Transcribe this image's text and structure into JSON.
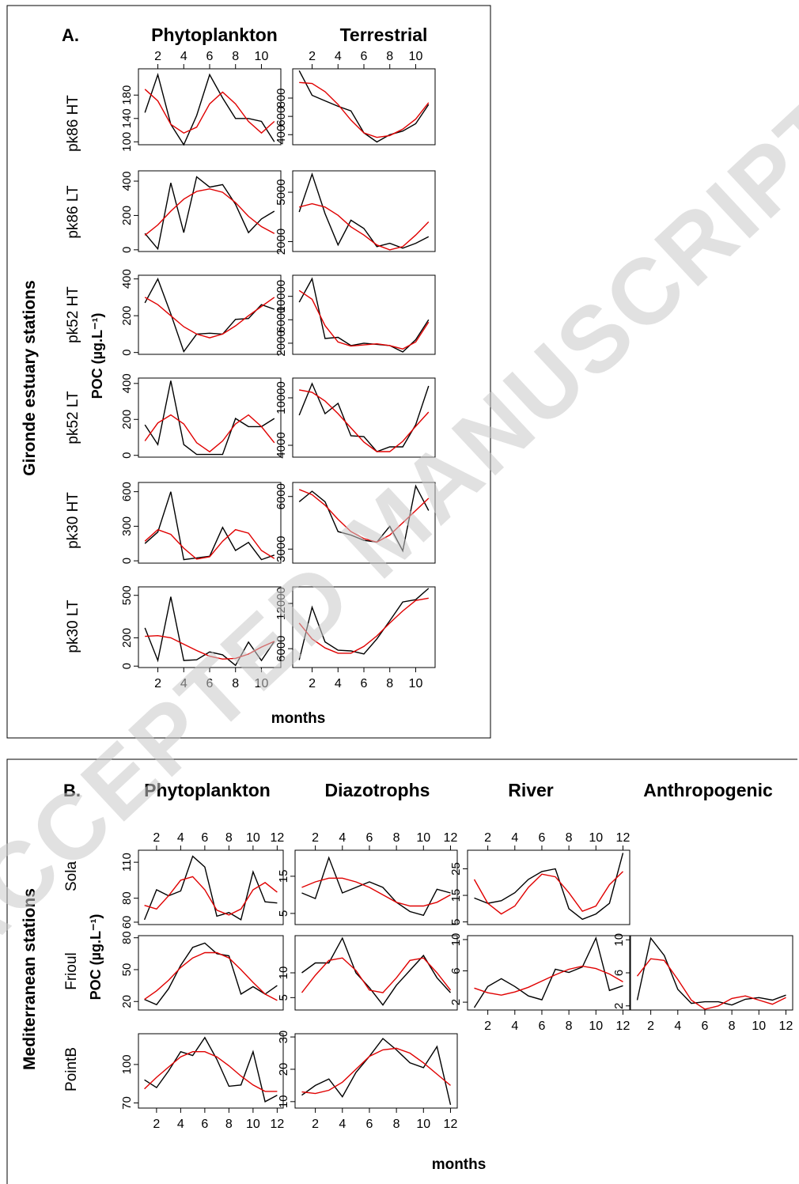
{
  "watermark": "ACCEPTED MANUSCRIPT",
  "colors": {
    "observed": "#000000",
    "fitted": "#e00000",
    "watermark": "#c8c8c8"
  },
  "x_ticks": [
    2,
    4,
    6,
    8,
    10,
    12
  ],
  "panelA": {
    "letter": "A.",
    "group_label": "Gironde estuary stations",
    "ylabel": "POC (µg.L⁻¹)",
    "xlabel": "months",
    "columns": [
      "Phytoplankton",
      "Terrestrial"
    ]
  },
  "panelB": {
    "letter": "B.",
    "group_label": "Mediterranean stations",
    "ylabel": "POC (µg.L⁻¹)",
    "xlabel": "months",
    "columns": [
      "Phytoplankton",
      "Diazotrophs",
      "River",
      "Anthropogenic"
    ]
  },
  "chart_data": [
    {
      "type": "line",
      "panel": "A",
      "station": "pk86 HT",
      "source": "Phytoplankton",
      "x": [
        1,
        2,
        3,
        4,
        5,
        6,
        7,
        8,
        9,
        10,
        11
      ],
      "yticks": [
        100,
        140,
        180
      ],
      "ylim": [
        95,
        225
      ],
      "series": [
        {
          "values": [
            150,
            215,
            130,
            95,
            145,
            215,
            175,
            140,
            140,
            135,
            100
          ]
        },
        {
          "values": [
            190,
            170,
            130,
            115,
            125,
            165,
            185,
            165,
            135,
            115,
            135
          ]
        }
      ]
    },
    {
      "type": "line",
      "panel": "A",
      "station": "pk86 HT",
      "source": "Terrestrial",
      "x": [
        1,
        2,
        3,
        4,
        5,
        6,
        7,
        8,
        9,
        10,
        11
      ],
      "yticks": [
        400,
        600,
        800
      ],
      "ylim": [
        290,
        1120
      ],
      "series": [
        {
          "values": [
            1100,
            830,
            770,
            710,
            660,
            420,
            320,
            400,
            440,
            520,
            730
          ]
        },
        {
          "values": [
            970,
            960,
            870,
            730,
            560,
            420,
            370,
            390,
            460,
            570,
            750
          ]
        }
      ]
    },
    {
      "type": "line",
      "panel": "A",
      "station": "pk86 LT",
      "source": "Phytoplankton",
      "x": [
        1,
        2,
        3,
        4,
        5,
        6,
        7,
        8,
        9,
        10,
        11
      ],
      "yticks": [
        0,
        200,
        400
      ],
      "ylim": [
        -10,
        460
      ],
      "series": [
        {
          "values": [
            95,
            5,
            390,
            100,
            425,
            365,
            380,
            265,
            100,
            180,
            225
          ]
        },
        {
          "values": [
            85,
            145,
            225,
            295,
            340,
            355,
            335,
            275,
            195,
            135,
            95
          ]
        }
      ]
    },
    {
      "type": "line",
      "panel": "A",
      "station": "pk86 LT",
      "source": "Terrestrial",
      "x": [
        1,
        2,
        3,
        4,
        5,
        6,
        7,
        8,
        9,
        10,
        11
      ],
      "yticks": [
        2000,
        5000
      ],
      "ylim": [
        1400,
        6300
      ],
      "series": [
        {
          "values": [
            3800,
            6100,
            3700,
            1800,
            3300,
            2800,
            1700,
            1900,
            1600,
            1900,
            2300
          ]
        },
        {
          "values": [
            4100,
            4300,
            4100,
            3600,
            2900,
            2400,
            1800,
            1500,
            1700,
            2400,
            3200
          ]
        }
      ]
    },
    {
      "type": "line",
      "panel": "A",
      "station": "pk52 HT",
      "source": "Phytoplankton",
      "x": [
        1,
        2,
        3,
        4,
        5,
        6,
        7,
        8,
        9,
        10,
        11
      ],
      "yticks": [
        0,
        200,
        400
      ],
      "ylim": [
        -10,
        420
      ],
      "series": [
        {
          "values": [
            270,
            400,
            210,
            5,
            100,
            105,
            100,
            180,
            185,
            260,
            235
          ]
        },
        {
          "values": [
            300,
            260,
            200,
            140,
            100,
            80,
            100,
            145,
            200,
            250,
            300
          ]
        }
      ]
    },
    {
      "type": "line",
      "panel": "A",
      "station": "pk52 HT",
      "source": "Terrestrial",
      "x": [
        1,
        2,
        3,
        4,
        5,
        6,
        7,
        8,
        9,
        10,
        11
      ],
      "yticks": [
        2000,
        6000,
        10000
      ],
      "ylim": [
        100,
        13600
      ],
      "series": [
        {
          "values": [
            9000,
            13000,
            2800,
            3000,
            1600,
            2000,
            1800,
            1600,
            500,
            2600,
            6000
          ]
        },
        {
          "values": [
            11000,
            9500,
            5000,
            2200,
            1500,
            1700,
            1900,
            1600,
            1000,
            2200,
            5600
          ]
        }
      ]
    },
    {
      "type": "line",
      "panel": "A",
      "station": "pk52 LT",
      "source": "Phytoplankton",
      "x": [
        1,
        2,
        3,
        4,
        5,
        6,
        7,
        8,
        9,
        10,
        11
      ],
      "yticks": [
        0,
        200,
        400
      ],
      "ylim": [
        -10,
        430
      ],
      "series": [
        {
          "values": [
            170,
            60,
            415,
            60,
            5,
            5,
            5,
            205,
            160,
            160,
            205
          ]
        },
        {
          "values": [
            80,
            180,
            225,
            175,
            70,
            20,
            80,
            175,
            225,
            160,
            70
          ]
        }
      ]
    },
    {
      "type": "line",
      "panel": "A",
      "station": "pk52 LT",
      "source": "Terrestrial",
      "x": [
        1,
        2,
        3,
        4,
        5,
        6,
        7,
        8,
        9,
        10,
        11
      ],
      "yticks": [
        4000,
        10000
      ],
      "ylim": [
        2500,
        12500
      ],
      "series": [
        {
          "values": [
            7800,
            11800,
            8000,
            9300,
            5200,
            5100,
            3200,
            3800,
            3800,
            6600,
            11500
          ]
        },
        {
          "values": [
            11000,
            10700,
            9600,
            8000,
            6200,
            4400,
            3200,
            3200,
            4500,
            6400,
            8200
          ]
        }
      ]
    },
    {
      "type": "line",
      "panel": "A",
      "station": "pk30 HT",
      "source": "Phytoplankton",
      "x": [
        1,
        2,
        3,
        4,
        5,
        6,
        7,
        8,
        9,
        10,
        11
      ],
      "yticks": [
        0,
        300,
        600
      ],
      "ylim": [
        -20,
        680
      ],
      "series": [
        {
          "values": [
            150,
            250,
            600,
            10,
            25,
            40,
            290,
            90,
            160,
            10,
            50
          ]
        },
        {
          "values": [
            170,
            270,
            230,
            110,
            15,
            35,
            170,
            270,
            240,
            90,
            20
          ]
        }
      ]
    },
    {
      "type": "line",
      "panel": "A",
      "station": "pk30 HT",
      "source": "Terrestrial",
      "x": [
        1,
        2,
        3,
        4,
        5,
        6,
        7,
        8,
        9,
        10,
        11
      ],
      "yticks": [
        3000,
        6000
      ],
      "ylim": [
        2200,
        6800
      ],
      "series": [
        {
          "values": [
            5700,
            6300,
            5700,
            4000,
            3800,
            3500,
            3400,
            4300,
            2900,
            6600,
            5200
          ]
        },
        {
          "values": [
            6400,
            6100,
            5500,
            4700,
            4000,
            3600,
            3400,
            3800,
            4500,
            5200,
            5900
          ]
        }
      ]
    },
    {
      "type": "line",
      "panel": "A",
      "station": "pk30 LT",
      "source": "Phytoplankton",
      "x": [
        1,
        2,
        3,
        4,
        5,
        6,
        7,
        8,
        9,
        10,
        11
      ],
      "yticks": [
        0,
        200,
        500
      ],
      "ylim": [
        -10,
        560
      ],
      "series": [
        {
          "values": [
            270,
            40,
            490,
            40,
            45,
            100,
            80,
            5,
            170,
            40,
            175
          ]
        },
        {
          "values": [
            210,
            215,
            200,
            155,
            110,
            70,
            50,
            55,
            85,
            135,
            175
          ]
        }
      ]
    },
    {
      "type": "line",
      "panel": "A",
      "station": "pk30 LT",
      "source": "Terrestrial",
      "x": [
        1,
        2,
        3,
        4,
        5,
        6,
        7,
        8,
        9,
        10,
        11
      ],
      "yticks": [
        6000,
        12000
      ],
      "ylim": [
        3500,
        14200
      ],
      "series": [
        {
          "values": [
            4500,
            11500,
            6900,
            5800,
            5700,
            5300,
            7300,
            9700,
            12200,
            12500,
            14000
          ]
        },
        {
          "values": [
            9400,
            7300,
            6100,
            5400,
            5400,
            6300,
            7700,
            9400,
            11000,
            12400,
            12700
          ]
        }
      ]
    },
    {
      "type": "line",
      "panel": "B",
      "station": "Sola",
      "source": "Phytoplankton",
      "x": [
        1,
        2,
        3,
        4,
        5,
        6,
        7,
        8,
        9,
        10,
        11,
        12
      ],
      "yticks": [
        60,
        80,
        110
      ],
      "ylim": [
        58,
        120
      ],
      "series": [
        {
          "values": [
            62,
            87,
            82,
            86,
            115,
            106,
            65,
            68,
            62,
            102,
            77,
            76
          ]
        },
        {
          "values": [
            74,
            71,
            82,
            95,
            98,
            87,
            70,
            66,
            71,
            87,
            93,
            85
          ]
        }
      ]
    },
    {
      "type": "line",
      "panel": "B",
      "station": "Sola",
      "source": "Diazotrophs",
      "x": [
        1,
        2,
        3,
        4,
        5,
        6,
        7,
        8,
        9,
        10,
        11,
        12
      ],
      "yticks": [
        5,
        15
      ],
      "ylim": [
        2,
        22
      ],
      "series": [
        {
          "values": [
            10.5,
            9,
            20,
            10.5,
            12,
            13.5,
            12,
            8,
            5.5,
            4.5,
            11.5,
            10.5
          ]
        },
        {
          "values": [
            12,
            13.5,
            14.5,
            14.5,
            13.5,
            12,
            10,
            8,
            7,
            7,
            8,
            10
          ]
        }
      ]
    },
    {
      "type": "line",
      "panel": "B",
      "station": "River",
      "source": "River",
      "x": [
        1,
        2,
        3,
        4,
        5,
        6,
        7,
        8,
        9,
        10,
        11,
        12
      ],
      "yticks": [
        5,
        15,
        25
      ],
      "ylim": [
        4,
        32
      ],
      "series": [
        {
          "values": [
            14,
            12,
            13,
            16,
            21,
            24,
            25,
            10,
            6,
            8,
            12,
            31
          ]
        },
        {
          "values": [
            21,
            12,
            8,
            11,
            18,
            23,
            22,
            16,
            9,
            11,
            19,
            24
          ]
        }
      ]
    },
    {
      "type": "line",
      "panel": "B",
      "station": "Frioul",
      "source": "Phytoplankton",
      "x": [
        1,
        2,
        3,
        4,
        5,
        6,
        7,
        8,
        9,
        10,
        11,
        12
      ],
      "yticks": [
        20,
        50,
        80
      ],
      "ylim": [
        12,
        82
      ],
      "series": [
        {
          "values": [
            22,
            17,
            32,
            54,
            71,
            75,
            65,
            63,
            27,
            34,
            27,
            35
          ]
        },
        {
          "values": [
            22,
            30,
            40,
            52,
            61,
            66,
            66,
            61,
            50,
            38,
            27,
            21
          ]
        }
      ]
    },
    {
      "type": "line",
      "panel": "B",
      "station": "Frioul",
      "source": "Diazotrophs",
      "x": [
        1,
        2,
        3,
        4,
        5,
        6,
        7,
        8,
        9,
        10,
        11,
        12
      ],
      "yticks": [
        5,
        10
      ],
      "ylim": [
        2.5,
        17.5
      ],
      "series": [
        {
          "values": [
            10,
            12,
            12,
            17,
            10,
            7,
            3.5,
            7.5,
            10.5,
            13.5,
            9,
            6
          ]
        },
        {
          "values": [
            6,
            9.5,
            12.5,
            13,
            10.5,
            6.5,
            6,
            9,
            12.5,
            13,
            10,
            6.5
          ]
        }
      ]
    },
    {
      "type": "line",
      "panel": "B",
      "station": "Frioul",
      "source": "River",
      "x": [
        1,
        2,
        3,
        4,
        5,
        6,
        7,
        8,
        9,
        10,
        11,
        12
      ],
      "yticks": [
        2,
        6,
        10
      ],
      "ylim": [
        1,
        10.5
      ],
      "series": [
        {
          "values": [
            1.3,
            4,
            5,
            4,
            2.8,
            2.3,
            6.2,
            5.8,
            6.5,
            10.2,
            3.5,
            4.1
          ]
        },
        {
          "values": [
            3.8,
            3.2,
            2.9,
            3.3,
            3.9,
            4.7,
            5.5,
            6.2,
            6.6,
            6.3,
            5.6,
            4.6
          ]
        }
      ]
    },
    {
      "type": "line",
      "panel": "B",
      "station": "Frioul",
      "source": "Anthropogenic",
      "x": [
        1,
        2,
        3,
        4,
        5,
        6,
        7,
        8,
        9,
        10,
        11,
        12
      ],
      "yticks": [
        2,
        6,
        10
      ],
      "ylim": [
        1.5,
        10.5
      ],
      "series": [
        {
          "values": [
            2.7,
            10.2,
            8.1,
            4,
            2.3,
            2.5,
            2.5,
            2.1,
            2.8,
            3,
            2.7,
            3.3
          ]
        },
        {
          "values": [
            5.6,
            7.7,
            7.5,
            5.2,
            2.7,
            1.6,
            2,
            2.9,
            3.2,
            2.7,
            2.2,
            3
          ]
        }
      ]
    },
    {
      "type": "line",
      "panel": "B",
      "station": "PointB",
      "source": "Phytoplankton",
      "x": [
        1,
        2,
        3,
        4,
        5,
        6,
        7,
        8,
        9,
        10,
        11,
        12
      ],
      "yticks": [
        70,
        100
      ],
      "ylim": [
        66,
        124
      ],
      "series": [
        {
          "values": [
            88,
            82,
            95,
            110,
            107,
            121,
            104,
            83,
            84,
            110,
            71,
            76
          ]
        },
        {
          "values": [
            81,
            90,
            98,
            106,
            110,
            110,
            106,
            99,
            91,
            84,
            79,
            79
          ]
        }
      ]
    },
    {
      "type": "line",
      "panel": "B",
      "station": "PointB",
      "source": "Diazotrophs",
      "x": [
        1,
        2,
        3,
        4,
        5,
        6,
        7,
        8,
        9,
        10,
        11,
        12
      ],
      "yticks": [
        10,
        20,
        30
      ],
      "ylim": [
        8,
        31
      ],
      "series": [
        {
          "values": [
            12,
            15,
            17,
            11.5,
            19,
            24,
            29.5,
            26,
            22,
            20.5,
            27,
            9
          ]
        },
        {
          "values": [
            13,
            12.5,
            13.5,
            16,
            20,
            24,
            26,
            26.5,
            25,
            22,
            18.5,
            15
          ]
        }
      ]
    }
  ]
}
